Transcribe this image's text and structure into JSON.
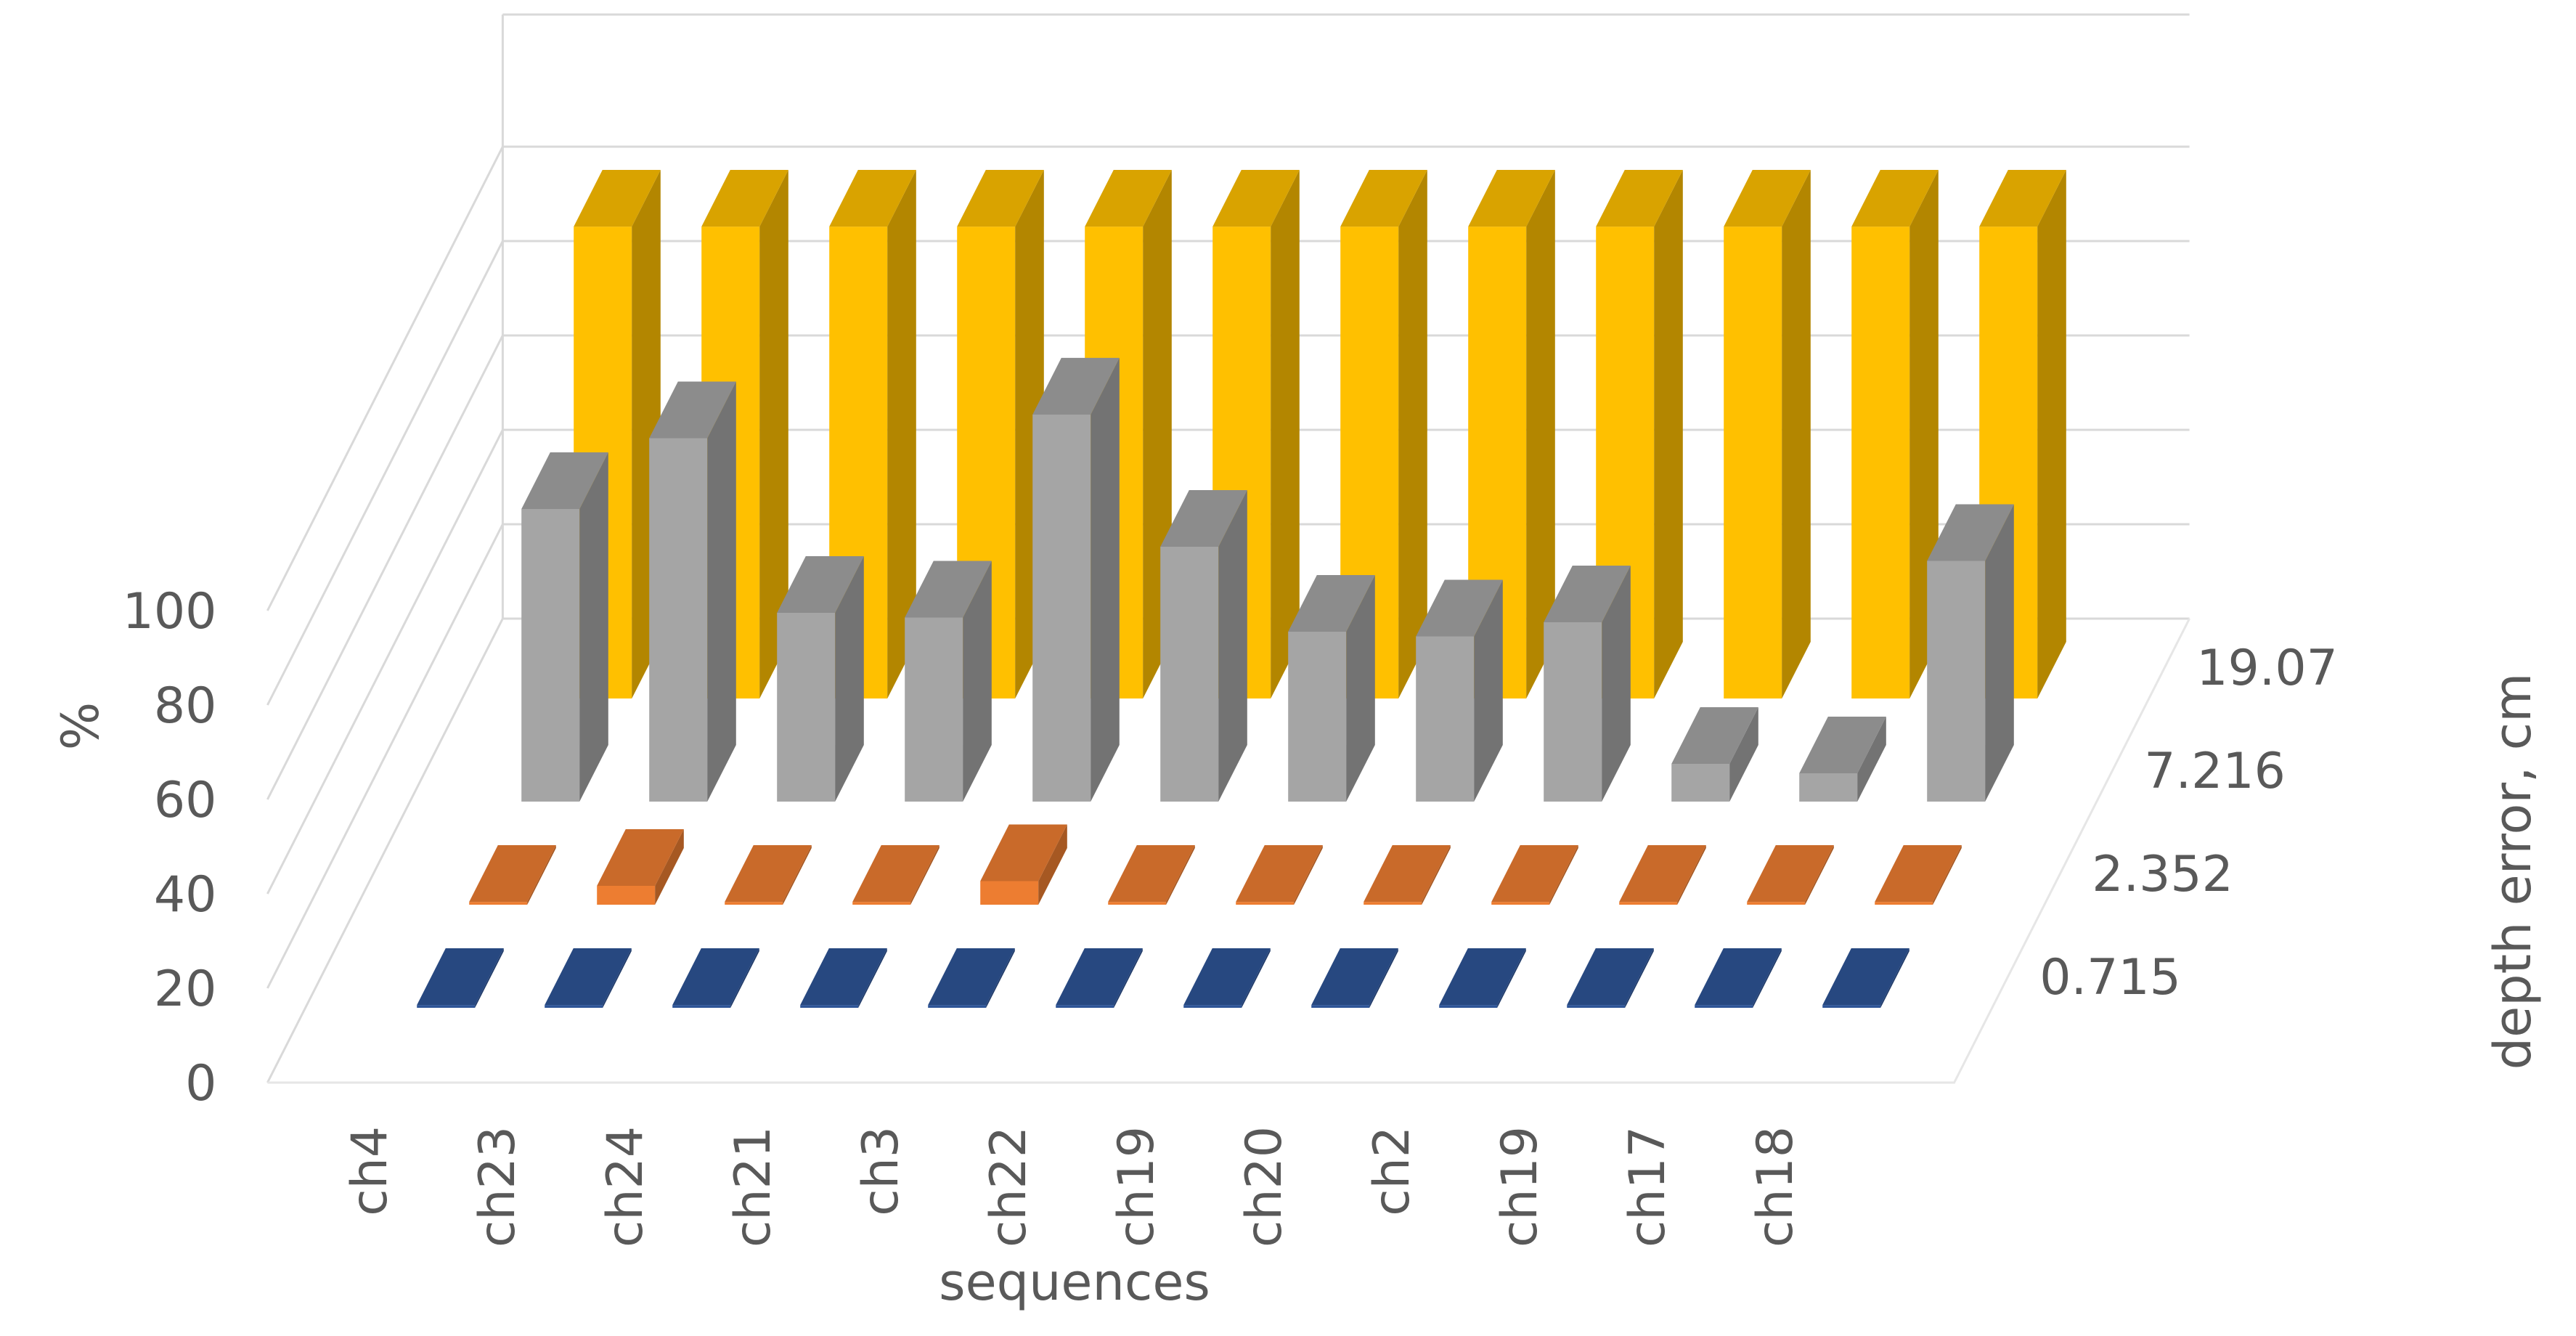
{
  "chart_data": {
    "type": "bar",
    "subtype": "3d-column",
    "categories": [
      "ch4",
      "ch23",
      "ch24",
      "ch21",
      "ch3",
      "ch22",
      "ch19",
      "ch20",
      "ch2",
      "ch19",
      "ch17",
      "ch18"
    ],
    "series": [
      {
        "name": "0.715",
        "color": "#2e5597",
        "values": [
          0,
          0,
          0,
          0,
          0,
          0,
          0,
          0,
          0,
          0,
          0,
          0
        ]
      },
      {
        "name": "2.352",
        "color": "#ed7d31",
        "values": [
          0,
          4,
          0,
          0,
          5,
          0,
          0,
          0,
          0,
          0,
          0,
          0
        ]
      },
      {
        "name": "7.216",
        "color": "#a5a5a5",
        "values": [
          62,
          77,
          40,
          39,
          82,
          54,
          36,
          35,
          38,
          8,
          6,
          51
        ]
      },
      {
        "name": "19.07",
        "color": "#ffc000",
        "values": [
          100,
          100,
          100,
          100,
          100,
          100,
          100,
          100,
          100,
          100,
          100,
          100
        ]
      }
    ],
    "xlabel": "sequences",
    "ylabel": "%",
    "zlabel": "depth error, cm",
    "y_ticks": [
      "0",
      "20",
      "40",
      "60",
      "80",
      "100"
    ],
    "ylim": [
      0,
      100
    ],
    "grid": true,
    "legend": "none"
  }
}
